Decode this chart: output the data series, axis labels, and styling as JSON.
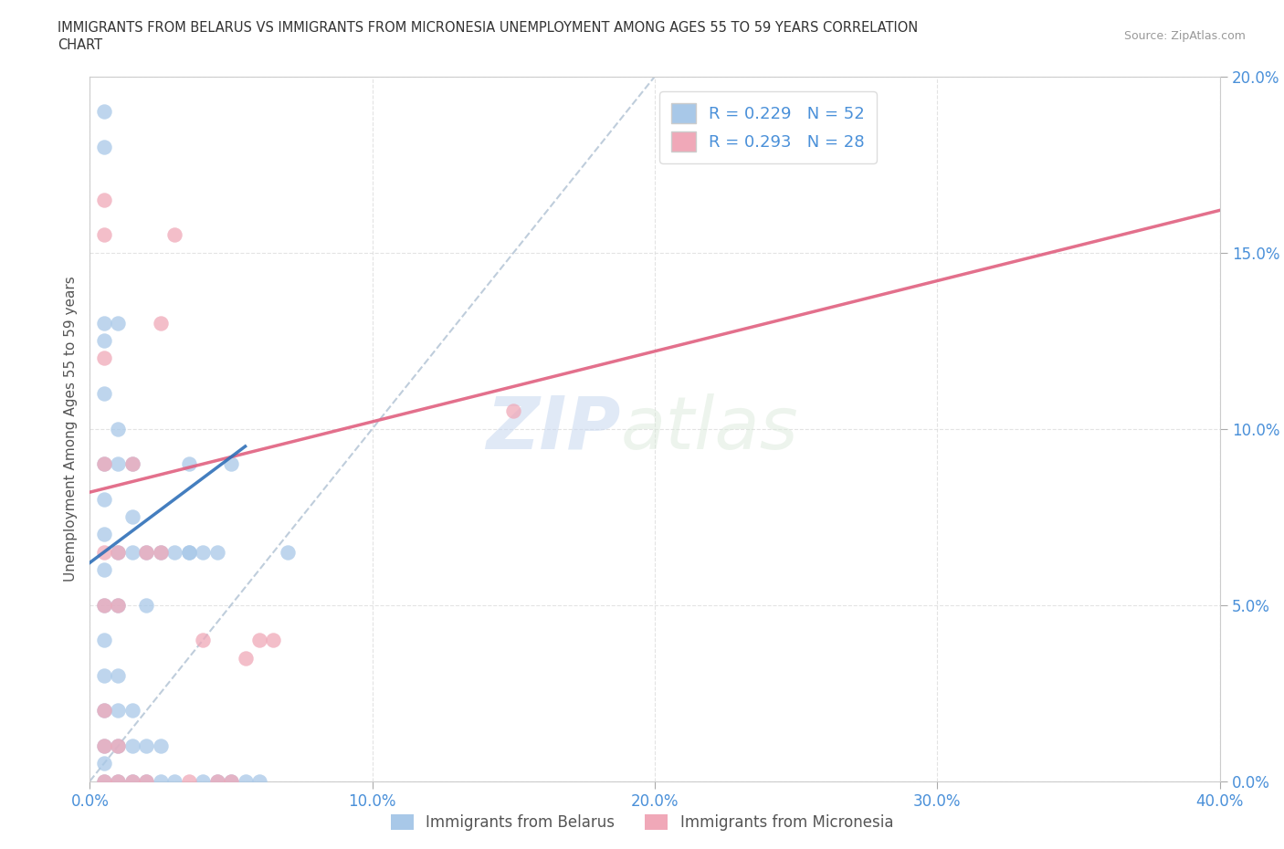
{
  "title_line1": "IMMIGRANTS FROM BELARUS VS IMMIGRANTS FROM MICRONESIA UNEMPLOYMENT AMONG AGES 55 TO 59 YEARS CORRELATION",
  "title_line2": "CHART",
  "source": "Source: ZipAtlas.com",
  "ylabel": "Unemployment Among Ages 55 to 59 years",
  "xlim": [
    0.0,
    0.4
  ],
  "ylim": [
    0.0,
    0.2
  ],
  "xticks": [
    0.0,
    0.1,
    0.2,
    0.3,
    0.4
  ],
  "yticks": [
    0.0,
    0.05,
    0.1,
    0.15,
    0.2
  ],
  "xtick_labels": [
    "0.0%",
    "10.0%",
    "20.0%",
    "30.0%",
    "40.0%"
  ],
  "ytick_labels": [
    "0.0%",
    "5.0%",
    "10.0%",
    "15.0%",
    "20.0%"
  ],
  "color_belarus": "#a8c8e8",
  "color_micronesia": "#f0a8b8",
  "trendline_belarus_color": "#3070b8",
  "trendline_micronesia_color": "#e06080",
  "trendline_ref_color": "#b8c8d8",
  "r_belarus": 0.229,
  "n_belarus": 52,
  "r_micronesia": 0.293,
  "n_micronesia": 28,
  "legend_label_belarus": "Immigrants from Belarus",
  "legend_label_micronesia": "Immigrants from Micronesia",
  "watermark_zip": "ZIP",
  "watermark_atlas": "atlas",
  "belarus_x": [
    0.005,
    0.005,
    0.005,
    0.005,
    0.005,
    0.005,
    0.005,
    0.005,
    0.005,
    0.005,
    0.005,
    0.005,
    0.005,
    0.005,
    0.005,
    0.01,
    0.01,
    0.01,
    0.01,
    0.01,
    0.01,
    0.01,
    0.01,
    0.01,
    0.015,
    0.015,
    0.015,
    0.015,
    0.015,
    0.015,
    0.02,
    0.02,
    0.02,
    0.02,
    0.025,
    0.025,
    0.025,
    0.03,
    0.03,
    0.035,
    0.035,
    0.035,
    0.04,
    0.04,
    0.045,
    0.045,
    0.05,
    0.05,
    0.055,
    0.06,
    0.07,
    0.005
  ],
  "belarus_y": [
    0.0,
    0.005,
    0.01,
    0.02,
    0.03,
    0.04,
    0.05,
    0.06,
    0.07,
    0.08,
    0.09,
    0.11,
    0.125,
    0.13,
    0.18,
    0.0,
    0.01,
    0.02,
    0.03,
    0.05,
    0.065,
    0.09,
    0.1,
    0.13,
    0.0,
    0.01,
    0.02,
    0.065,
    0.075,
    0.09,
    0.0,
    0.01,
    0.05,
    0.065,
    0.0,
    0.01,
    0.065,
    0.0,
    0.065,
    0.065,
    0.065,
    0.09,
    0.0,
    0.065,
    0.0,
    0.065,
    0.0,
    0.09,
    0.0,
    0.0,
    0.065,
    0.19
  ],
  "micronesia_x": [
    0.005,
    0.005,
    0.005,
    0.005,
    0.005,
    0.005,
    0.005,
    0.005,
    0.01,
    0.01,
    0.01,
    0.01,
    0.015,
    0.015,
    0.02,
    0.02,
    0.025,
    0.025,
    0.03,
    0.035,
    0.04,
    0.045,
    0.05,
    0.055,
    0.06,
    0.065,
    0.15,
    0.005
  ],
  "micronesia_y": [
    0.0,
    0.01,
    0.02,
    0.05,
    0.065,
    0.09,
    0.12,
    0.155,
    0.0,
    0.01,
    0.05,
    0.065,
    0.0,
    0.09,
    0.0,
    0.065,
    0.065,
    0.13,
    0.155,
    0.0,
    0.04,
    0.0,
    0.0,
    0.035,
    0.04,
    0.04,
    0.105,
    0.165
  ],
  "belarus_trendline_x0": 0.0,
  "belarus_trendline_y0": 0.062,
  "belarus_trendline_x1": 0.055,
  "belarus_trendline_y1": 0.095,
  "micronesia_trendline_x0": 0.0,
  "micronesia_trendline_y0": 0.082,
  "micronesia_trendline_x1": 0.4,
  "micronesia_trendline_y1": 0.162,
  "ref_trendline_x0": 0.0,
  "ref_trendline_y0": 0.0,
  "ref_trendline_x1": 0.2,
  "ref_trendline_y1": 0.2
}
